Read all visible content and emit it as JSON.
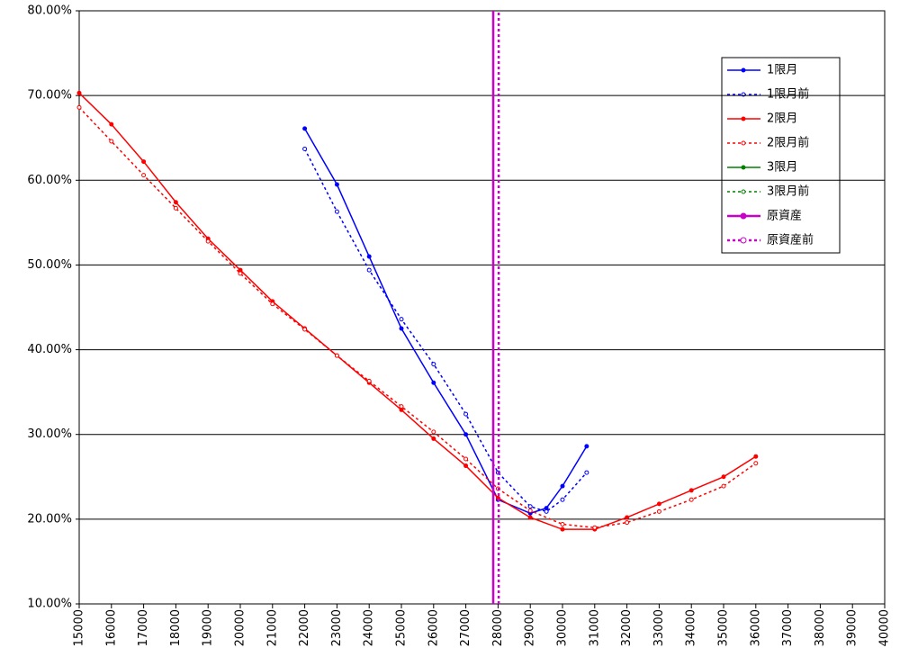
{
  "chart_data": {
    "type": "line",
    "xlim": [
      15000,
      40000
    ],
    "xticks": [
      15000,
      16000,
      17000,
      18000,
      19000,
      20000,
      21000,
      22000,
      23000,
      24000,
      25000,
      26000,
      27000,
      28000,
      29000,
      30000,
      31000,
      32000,
      33000,
      34000,
      35000,
      36000,
      37000,
      38000,
      39000,
      40000
    ],
    "ylim": [
      10,
      80
    ],
    "yticks": [
      {
        "value": 10,
        "label": "10.00%"
      },
      {
        "value": 20,
        "label": "20.00%"
      },
      {
        "value": 30,
        "label": "30.00%"
      },
      {
        "value": 40,
        "label": "40.00%"
      },
      {
        "value": 50,
        "label": "50.00%"
      },
      {
        "value": 60,
        "label": "60.00%"
      },
      {
        "value": 70,
        "label": "70.00%"
      },
      {
        "value": 80,
        "label": "80.00%"
      }
    ],
    "grid": true,
    "legend": "upper-right",
    "series": [
      {
        "name": "1限月",
        "color": "#0000ff",
        "dashed": false,
        "marker": "filled",
        "x": [
          22000,
          23000,
          24000,
          25000,
          26000,
          27000,
          28000,
          29000,
          29500,
          30000,
          30750
        ],
        "values": [
          66.1,
          59.5,
          51.0,
          42.5,
          36.1,
          30.0,
          22.3,
          20.7,
          21.3,
          23.9,
          28.6
        ]
      },
      {
        "name": "1限月前",
        "color": "#0000ff",
        "dashed": true,
        "marker": "open",
        "x": [
          22000,
          23000,
          24000,
          25000,
          26000,
          27000,
          28000,
          29000,
          29500,
          30000,
          30750
        ],
        "values": [
          63.7,
          56.3,
          49.4,
          43.6,
          38.3,
          32.4,
          25.5,
          21.5,
          20.9,
          22.3,
          25.5
        ]
      },
      {
        "name": "2限月",
        "color": "#ff0000",
        "dashed": false,
        "marker": "filled",
        "x": [
          15000,
          16000,
          17000,
          18000,
          19000,
          20000,
          21000,
          22000,
          23000,
          24000,
          25000,
          26000,
          27000,
          28000,
          29000,
          30000,
          31000,
          32000,
          33000,
          34000,
          35000,
          36000
        ],
        "values": [
          70.3,
          66.6,
          62.2,
          57.4,
          53.1,
          49.4,
          45.7,
          42.5,
          39.3,
          36.1,
          32.9,
          29.5,
          26.3,
          22.5,
          20.2,
          18.8,
          18.8,
          20.2,
          21.8,
          23.4,
          25.0,
          27.4
        ]
      },
      {
        "name": "2限月前",
        "color": "#ff0000",
        "dashed": true,
        "marker": "open",
        "x": [
          15000,
          16000,
          17000,
          18000,
          19000,
          20000,
          21000,
          22000,
          23000,
          24000,
          25000,
          26000,
          27000,
          28000,
          29000,
          30000,
          31000,
          32000,
          33000,
          34000,
          35000,
          36000
        ],
        "values": [
          68.6,
          64.6,
          60.6,
          56.7,
          52.8,
          49.0,
          45.4,
          42.4,
          39.3,
          36.3,
          33.3,
          30.3,
          27.1,
          23.6,
          21.0,
          19.4,
          19.0,
          19.6,
          20.9,
          22.3,
          23.9,
          26.6
        ]
      },
      {
        "name": "3限月",
        "color": "#008000",
        "dashed": false,
        "marker": "filled",
        "x": [],
        "values": []
      },
      {
        "name": "3限月前",
        "color": "#008000",
        "dashed": true,
        "marker": "open",
        "x": [],
        "values": []
      },
      {
        "name": "原資産",
        "color": "#cc00cc",
        "dashed": false,
        "marker": "filled",
        "x": [
          27850,
          27850
        ],
        "values": [
          10,
          80
        ]
      },
      {
        "name": "原資産前",
        "color": "#cc00cc",
        "dashed": true,
        "marker": "open",
        "x": [
          28020,
          28020
        ],
        "values": [
          10,
          80
        ]
      }
    ]
  }
}
